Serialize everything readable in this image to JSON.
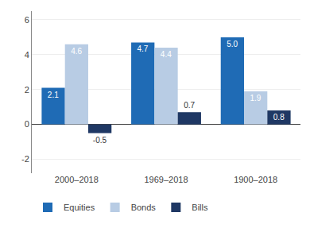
{
  "chart_data": {
    "type": "bar",
    "categories": [
      "2000–2018",
      "1969–2018",
      "1900–2018"
    ],
    "series": [
      {
        "name": "Equities",
        "color": "#1F6BB5",
        "values": [
          2.1,
          4.7,
          5.0
        ],
        "value_labels": [
          "2.1",
          "4.7",
          "5.0"
        ]
      },
      {
        "name": "Bonds",
        "color": "#B8CCE4",
        "values": [
          4.6,
          4.4,
          1.9
        ],
        "value_labels": [
          "4.6",
          "4.4",
          "1.9"
        ]
      },
      {
        "name": "Bills",
        "color": "#1F3864",
        "values": [
          -0.5,
          0.7,
          0.8
        ],
        "value_labels": [
          "-0.5",
          "0.7",
          "0.8"
        ]
      }
    ],
    "ylim": [
      -2.8,
      6.5
    ],
    "yticks": [
      -2,
      0,
      2,
      4,
      6
    ],
    "grid": true,
    "data_labels": true,
    "legend": "bottom"
  }
}
